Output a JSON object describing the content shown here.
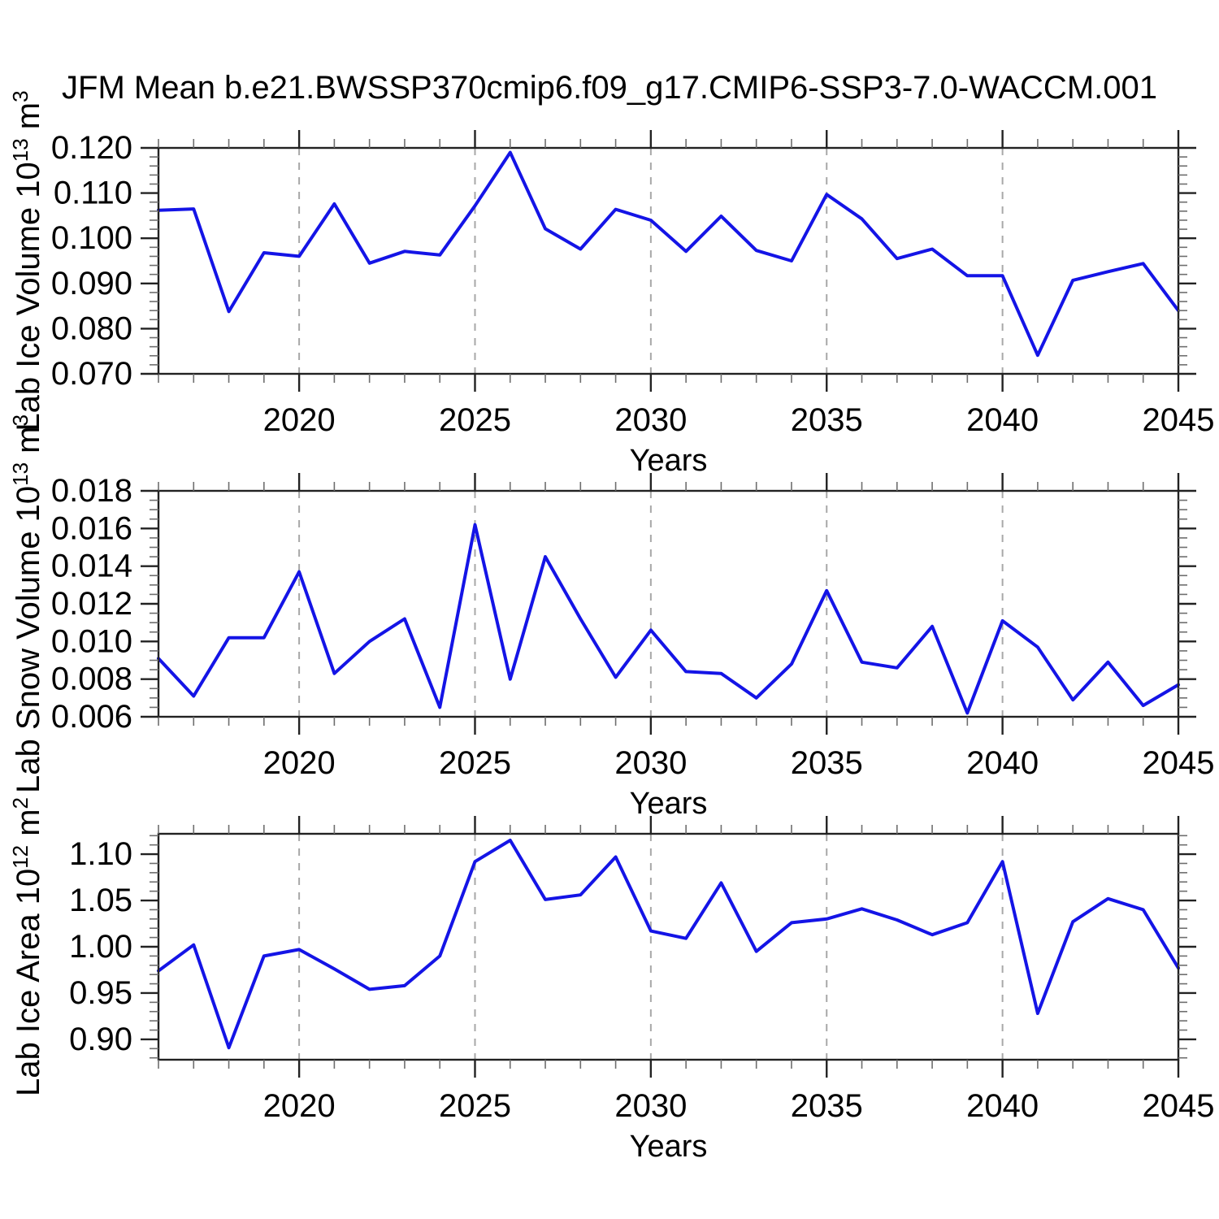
{
  "chart_data": {
    "type": "line",
    "title": "JFM Mean b.e21.BWSSP370cmip6.f09_g17.CMIP6-SSP3-7.0-WACCM.001",
    "x": [
      2016,
      2017,
      2018,
      2019,
      2020,
      2021,
      2022,
      2023,
      2024,
      2025,
      2026,
      2027,
      2028,
      2029,
      2030,
      2031,
      2032,
      2033,
      2034,
      2035,
      2036,
      2037,
      2038,
      2039,
      2040,
      2041,
      2042,
      2043,
      2044,
      2045
    ],
    "x_axis": {
      "label": "Years",
      "range": [
        2016,
        2045
      ],
      "major_tick_labels": [
        "2020",
        "2025",
        "2030",
        "2035",
        "2040",
        "2045"
      ],
      "major_tick_years": [
        2020,
        2025,
        2030,
        2035,
        2040,
        2045
      ],
      "minor_tick_step_years": 1,
      "gridline_years": [
        2020,
        2025,
        2030,
        2035,
        2040
      ],
      "grid": "vertical-dashed"
    },
    "panels": [
      {
        "id": "lab-ice-volume",
        "ylabel_segments": [
          {
            "t": "Lab Ice Volume 10"
          },
          {
            "t": "13",
            "sup": true
          },
          {
            "t": " m"
          },
          {
            "t": "3",
            "sup": true
          }
        ],
        "ylim": [
          0.07,
          0.12
        ],
        "y_major_step": 0.01,
        "y_minor_step": 0.002,
        "y_tick_labels": [
          "0.070",
          "0.080",
          "0.090",
          "0.100",
          "0.110",
          "0.120"
        ],
        "y_decimals": 3,
        "values": [
          0.1062,
          0.1065,
          0.0838,
          0.0968,
          0.096,
          0.1076,
          0.0945,
          0.0971,
          0.0963,
          0.1072,
          0.119,
          0.1021,
          0.0976,
          0.1064,
          0.104,
          0.0971,
          0.1049,
          0.0973,
          0.095,
          0.1097,
          0.1043,
          0.0955,
          0.0976,
          0.0917,
          0.0917,
          0.0741,
          0.0907,
          0.0926,
          0.0944,
          0.084
        ]
      },
      {
        "id": "lab-snow-volume",
        "ylabel_segments": [
          {
            "t": "Lab Snow Volume 10"
          },
          {
            "t": "13",
            "sup": true
          },
          {
            "t": " m"
          },
          {
            "t": "3",
            "sup": true
          }
        ],
        "ylim": [
          0.006,
          0.018
        ],
        "y_major_step": 0.002,
        "y_minor_step": 0.0005,
        "y_tick_labels": [
          "0.006",
          "0.008",
          "0.010",
          "0.012",
          "0.014",
          "0.016",
          "0.018"
        ],
        "y_decimals": 3,
        "values": [
          0.0091,
          0.0071,
          0.0102,
          0.0102,
          0.0137,
          0.0083,
          0.01,
          0.0112,
          0.0065,
          0.0162,
          0.008,
          0.0145,
          0.0112,
          0.0081,
          0.0106,
          0.0084,
          0.0083,
          0.007,
          0.0088,
          0.0127,
          0.0089,
          0.0086,
          0.0108,
          0.0062,
          0.0111,
          0.0097,
          0.0069,
          0.0089,
          0.0066,
          0.0077
        ]
      },
      {
        "id": "lab-ice-area",
        "ylabel_segments": [
          {
            "t": "Lab Ice Area 10"
          },
          {
            "t": "12",
            "sup": true
          },
          {
            "t": " m"
          },
          {
            "t": "2",
            "sup": true
          }
        ],
        "ylim": [
          0.878,
          1.122
        ],
        "y_major_step": 0.05,
        "y_minor_step": 0.01,
        "y_tick_labels": [
          "0.90",
          "0.95",
          "1.00",
          "1.05",
          "1.10"
        ],
        "y_decimals": 2,
        "values": [
          0.974,
          1.002,
          0.891,
          0.99,
          0.997,
          0.976,
          0.954,
          0.958,
          0.99,
          1.092,
          1.115,
          1.051,
          1.056,
          1.097,
          1.017,
          1.009,
          1.069,
          0.995,
          1.026,
          1.03,
          1.041,
          1.029,
          1.013,
          1.026,
          1.092,
          0.928,
          1.027,
          1.052,
          1.04,
          0.977
        ]
      }
    ],
    "colors": {
      "line": "#1414e6",
      "frame": "#222222",
      "minor_tick": "#6e6e6e",
      "gridline": "#a8a8a8",
      "text": "#000000"
    },
    "legend": "none"
  }
}
